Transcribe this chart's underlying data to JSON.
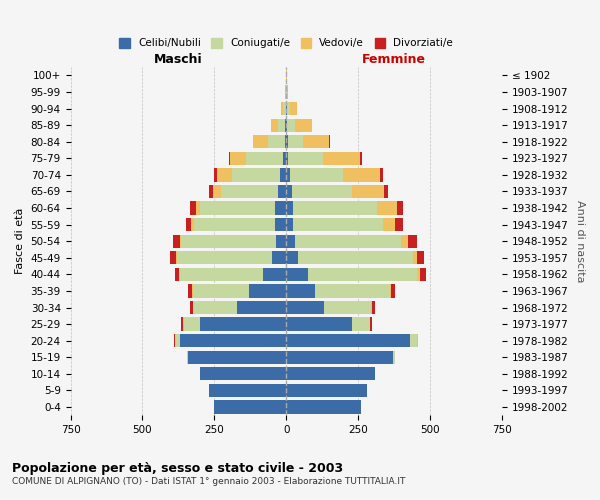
{
  "age_groups": [
    "0-4",
    "5-9",
    "10-14",
    "15-19",
    "20-24",
    "25-29",
    "30-34",
    "35-39",
    "40-44",
    "45-49",
    "50-54",
    "55-59",
    "60-64",
    "65-69",
    "70-74",
    "75-79",
    "80-84",
    "85-89",
    "90-94",
    "95-99",
    "100+"
  ],
  "birth_years": [
    "1998-2002",
    "1993-1997",
    "1988-1992",
    "1983-1987",
    "1978-1982",
    "1973-1977",
    "1968-1972",
    "1963-1967",
    "1958-1962",
    "1953-1957",
    "1948-1952",
    "1943-1947",
    "1938-1942",
    "1933-1937",
    "1928-1932",
    "1923-1927",
    "1918-1922",
    "1913-1917",
    "1908-1912",
    "1903-1907",
    "≤ 1902"
  ],
  "males": {
    "celibi": [
      250,
      270,
      300,
      340,
      370,
      300,
      170,
      130,
      80,
      50,
      35,
      40,
      40,
      30,
      20,
      10,
      5,
      3,
      2,
      0,
      0
    ],
    "coniugati": [
      0,
      0,
      0,
      5,
      15,
      55,
      155,
      195,
      290,
      330,
      330,
      280,
      260,
      195,
      170,
      130,
      60,
      25,
      8,
      2,
      0
    ],
    "vedovi": [
      0,
      0,
      0,
      0,
      2,
      5,
      0,
      2,
      2,
      3,
      5,
      10,
      15,
      30,
      50,
      55,
      50,
      25,
      8,
      2,
      0
    ],
    "divorziati": [
      0,
      0,
      0,
      0,
      2,
      5,
      10,
      15,
      15,
      20,
      25,
      20,
      20,
      15,
      10,
      5,
      2,
      0,
      0,
      0,
      0
    ]
  },
  "females": {
    "nubili": [
      260,
      280,
      310,
      370,
      430,
      230,
      130,
      100,
      75,
      40,
      30,
      25,
      25,
      20,
      12,
      8,
      5,
      4,
      3,
      0,
      0
    ],
    "coniugate": [
      0,
      0,
      0,
      10,
      25,
      60,
      165,
      260,
      380,
      400,
      370,
      310,
      290,
      210,
      185,
      120,
      55,
      25,
      10,
      2,
      0
    ],
    "vedove": [
      0,
      0,
      0,
      0,
      2,
      3,
      3,
      5,
      10,
      15,
      25,
      45,
      70,
      110,
      130,
      130,
      90,
      60,
      25,
      5,
      2
    ],
    "divorziate": [
      0,
      0,
      0,
      0,
      2,
      5,
      10,
      15,
      20,
      25,
      30,
      25,
      20,
      15,
      8,
      5,
      2,
      0,
      0,
      0,
      0
    ]
  },
  "colors": {
    "celibi": "#3c6ca8",
    "coniugati": "#c5d8a0",
    "vedovi": "#f0c060",
    "divorziati": "#c82020"
  },
  "xlim": 750,
  "title": "Popolazione per età, sesso e stato civile - 2003",
  "subtitle": "COMUNE DI ALPIGNANO (TO) - Dati ISTAT 1° gennaio 2003 - Elaborazione TUTTITALIA.IT",
  "ylabel": "Fasce di età",
  "ylabel_right": "Anni di nascita",
  "xlabel_left": "Maschi",
  "xlabel_right": "Femmine",
  "legend_labels": [
    "Celibi/Nubili",
    "Coniugati/e",
    "Vedovi/e",
    "Divorziati/e"
  ],
  "background_color": "#f5f5f5",
  "bar_height": 0.8
}
